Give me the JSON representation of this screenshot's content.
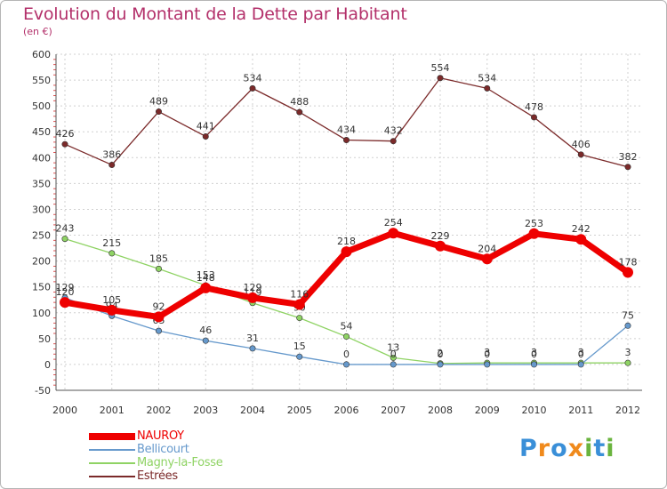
{
  "header": {
    "title": "Evolution du Montant de la Dette par Habitant",
    "subtitle": "(en €)"
  },
  "logo": {
    "text": "Proxiti",
    "letters": [
      "P",
      "r",
      "o",
      "x",
      "i",
      "t",
      "i"
    ],
    "colors": [
      "#3a8fd8",
      "#f08a1c",
      "#3a8fd8",
      "#f08a1c",
      "#6ab43e",
      "#3a8fd8",
      "#6ab43e"
    ]
  },
  "chart_data": {
    "type": "line",
    "x": [
      "2000",
      "2001",
      "2002",
      "2003",
      "2004",
      "2005",
      "2006",
      "2007",
      "2008",
      "2009",
      "2010",
      "2011",
      "2012"
    ],
    "ylim": [
      -50,
      600
    ],
    "yticks": [
      "-50",
      "0",
      "50",
      "100",
      "150",
      "200",
      "250",
      "300",
      "350",
      "400",
      "450",
      "500",
      "550",
      "600"
    ],
    "grid": true,
    "legend_position": "bottom-left",
    "series": [
      {
        "name": "Estrées",
        "color": "#7b2a2a",
        "values": [
          426,
          386,
          489,
          441,
          534,
          488,
          434,
          432,
          554,
          534,
          478,
          406,
          382
        ]
      },
      {
        "name": "Magny-la-Fosse",
        "color": "#8fd364",
        "values": [
          243,
          215,
          185,
          153,
          119,
          90,
          54,
          13,
          2,
          3,
          3,
          3,
          3
        ]
      },
      {
        "name": "Bellicourt",
        "color": "#6699cc",
        "values": [
          129,
          94,
          65,
          46,
          31,
          15,
          0,
          0,
          0,
          0,
          0,
          0,
          75
        ]
      },
      {
        "name": "NAUROY",
        "color": "#ee0000",
        "values": [
          120,
          105,
          92,
          148,
          129,
          116,
          218,
          254,
          229,
          204,
          253,
          242,
          178
        ]
      }
    ]
  },
  "legend": {
    "items": [
      {
        "label": "NAUROY",
        "color": "#ee0000"
      },
      {
        "label": "Bellicourt",
        "color": "#6699cc"
      },
      {
        "label": "Magny-la-Fosse",
        "color": "#8fd364"
      },
      {
        "label": "Estrées",
        "color": "#7b2a2a"
      }
    ]
  }
}
